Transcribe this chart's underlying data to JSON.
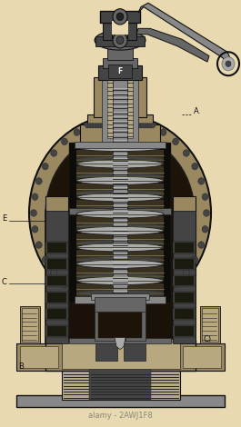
{
  "background_color": "#e8d9b0",
  "watermark_text": "alamy - 2AWJ1F8",
  "watermark_color": "#888877",
  "fig_width": 2.65,
  "fig_height": 4.7,
  "dpi": 100,
  "label_A": "A.",
  "label_B": "B",
  "label_C": "C",
  "label_C2": "C)",
  "label_E": "E",
  "label_F": "F"
}
